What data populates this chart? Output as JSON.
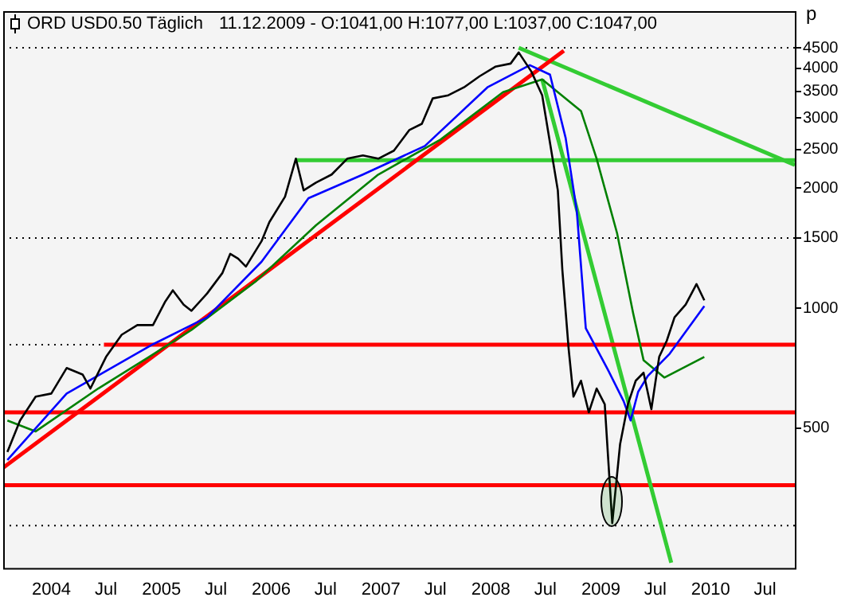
{
  "chart_data": {
    "type": "line",
    "title": "ORD USD0.50 Täglich",
    "subtitle": "11.12.2009 - O:1041,00 H:1077,00 L:1037,00 C:1047,00",
    "ylabel": "p",
    "log": true,
    "grid": false,
    "legend": false,
    "xlim": [
      "2003-07-25",
      "2010-10-08"
    ],
    "xticks": [
      {
        "value": "2004-01-01",
        "label": "2004"
      },
      {
        "value": "2004-07-01",
        "label": "Jul"
      },
      {
        "value": "2005-01-01",
        "label": "2005"
      },
      {
        "value": "2005-07-01",
        "label": "Jul"
      },
      {
        "value": "2006-01-01",
        "label": "2006"
      },
      {
        "value": "2006-07-01",
        "label": "Jul"
      },
      {
        "value": "2007-01-01",
        "label": "2007"
      },
      {
        "value": "2007-07-01",
        "label": "Jul"
      },
      {
        "value": "2008-01-01",
        "label": "2008"
      },
      {
        "value": "2008-07-01",
        "label": "Jul"
      },
      {
        "value": "2009-01-01",
        "label": "2009"
      },
      {
        "value": "2009-07-01",
        "label": "Jul"
      },
      {
        "value": "2010-01-01",
        "label": "2010"
      },
      {
        "value": "2010-07-01",
        "label": "Jul"
      }
    ],
    "ylim": [
      223,
      5560
    ],
    "yticks": [
      500,
      1000,
      1500,
      2000,
      2500,
      3000,
      3500,
      4000,
      4500
    ],
    "series": [
      {
        "color": "#000000",
        "x": [
          "2003-08-08",
          "2003-09-19",
          "2003-11-10",
          "2004-01-01",
          "2004-02-21",
          "2004-04-14",
          "2004-05-10",
          "2004-07-01",
          "2004-08-22",
          "2004-10-13",
          "2004-12-04",
          "2005-01-14",
          "2005-02-08",
          "2005-03-16",
          "2005-04-11",
          "2005-06-02",
          "2005-07-23",
          "2005-08-18",
          "2005-09-13",
          "2005-10-09",
          "2005-11-30",
          "2005-12-26",
          "2006-02-16",
          "2006-03-24",
          "2006-04-19",
          "2006-05-30",
          "2006-07-21",
          "2006-09-11",
          "2006-11-02",
          "2006-12-23",
          "2007-02-13",
          "2007-04-05",
          "2007-05-17",
          "2007-06-22",
          "2007-08-13",
          "2007-10-04",
          "2007-11-25",
          "2008-01-16",
          "2008-03-07",
          "2008-04-03",
          "2008-05-15",
          "2008-06-20",
          "2008-07-16",
          "2008-08-11",
          "2008-08-26",
          "2008-09-16",
          "2008-10-02",
          "2008-10-27",
          "2008-11-22",
          "2008-12-18",
          "2009-01-14",
          "2009-01-29",
          "2009-02-08",
          "2009-03-06",
          "2009-04-01",
          "2009-04-27",
          "2009-05-23",
          "2009-06-18",
          "2009-07-14",
          "2009-08-08",
          "2009-09-03",
          "2009-10-10",
          "2009-11-15",
          "2009-12-11"
        ],
        "values": [
          436,
          523,
          600,
          611,
          708,
          682,
          629,
          755,
          858,
          907,
          907,
          1040,
          1109,
          1021,
          985,
          1089,
          1226,
          1369,
          1332,
          1272,
          1473,
          1644,
          1904,
          2372,
          1975,
          2066,
          2164,
          2372,
          2416,
          2372,
          2484,
          2797,
          2901,
          3359,
          3420,
          3581,
          3818,
          4033,
          4107,
          4380,
          3923,
          3420,
          2598,
          1975,
          1249,
          790,
          600,
          658,
          548,
          629,
          574,
          380,
          289,
          456,
          574,
          658,
          689,
          558,
          755,
          828,
          949,
          1021,
          1150,
          1047
        ]
      },
      {
        "color": "#0000ff",
        "x": [
          "2003-08-08",
          "2004-02-21",
          "2004-12-04",
          "2005-06-02",
          "2005-11-30",
          "2006-05-05",
          "2006-11-02",
          "2007-05-27",
          "2007-12-21",
          "2008-05-10",
          "2008-07-16",
          "2008-09-06",
          "2008-10-13",
          "2008-11-12",
          "2009-01-24",
          "2009-03-18",
          "2009-04-10",
          "2009-05-05",
          "2009-06-06",
          "2009-08-18",
          "2009-12-11"
        ],
        "values": [
          416,
          611,
          812,
          949,
          1308,
          1887,
          2164,
          2552,
          3581,
          4071,
          3853,
          2672,
          1754,
          891,
          702,
          584,
          523,
          617,
          676,
          769,
          1012
        ]
      },
      {
        "color": "#008000",
        "x": [
          "2003-08-08",
          "2003-11-10",
          "2004-06-05",
          "2004-11-21",
          "2005-04-11",
          "2005-11-13",
          "2006-05-30",
          "2006-12-23",
          "2007-07-18",
          "2008-02-11",
          "2008-06-20",
          "2008-10-27",
          "2008-12-18",
          "2009-02-24",
          "2009-04-18",
          "2009-05-23",
          "2009-07-31",
          "2009-12-11"
        ],
        "values": [
          523,
          491,
          629,
          755,
          882,
          1172,
          1614,
          2164,
          2648,
          3483,
          3750,
          3123,
          2372,
          1542,
          975,
          741,
          670,
          755
        ]
      },
      {
        "color": "#ff0000",
        "x": [
          "2003-07-25",
          "2008-08-31"
        ],
        "values": [
          398,
          4425
        ]
      },
      {
        "color": "#ff0000",
        "x": [
          "2004-06-24",
          "2010-10-08"
        ],
        "values": [
          810,
          810
        ]
      },
      {
        "color": "#33cc33",
        "x": [
          "2008-04-03",
          "2010-10-08"
        ],
        "values": [
          4500,
          2287
        ]
      },
      {
        "color": "#33cc33",
        "x": [
          "2006-03-24",
          "2010-10-08"
        ],
        "values": [
          2350,
          2350
        ]
      },
      {
        "color": "#33cc33",
        "x": [
          "2008-06-20",
          "2009-08-23"
        ],
        "values": [
          3750,
          230
        ]
      }
    ],
    "ref_lines": [
      {
        "axis": "y",
        "value": 548,
        "color": "#ff0000",
        "line_style": "solid"
      },
      {
        "axis": "y",
        "value": 360,
        "color": "#ff0000",
        "line_style": "solid"
      },
      {
        "axis": "y",
        "value": 4500,
        "color": "#000000",
        "line_style": "dotted"
      },
      {
        "axis": "y",
        "value": 1500,
        "color": "#000000",
        "line_style": "dotted"
      },
      {
        "axis": "y",
        "value": 810,
        "color": "#000000",
        "line_style": "dotted"
      },
      {
        "axis": "y",
        "value": 285,
        "color": "#000000",
        "line_style": "dotted"
      }
    ]
  }
}
